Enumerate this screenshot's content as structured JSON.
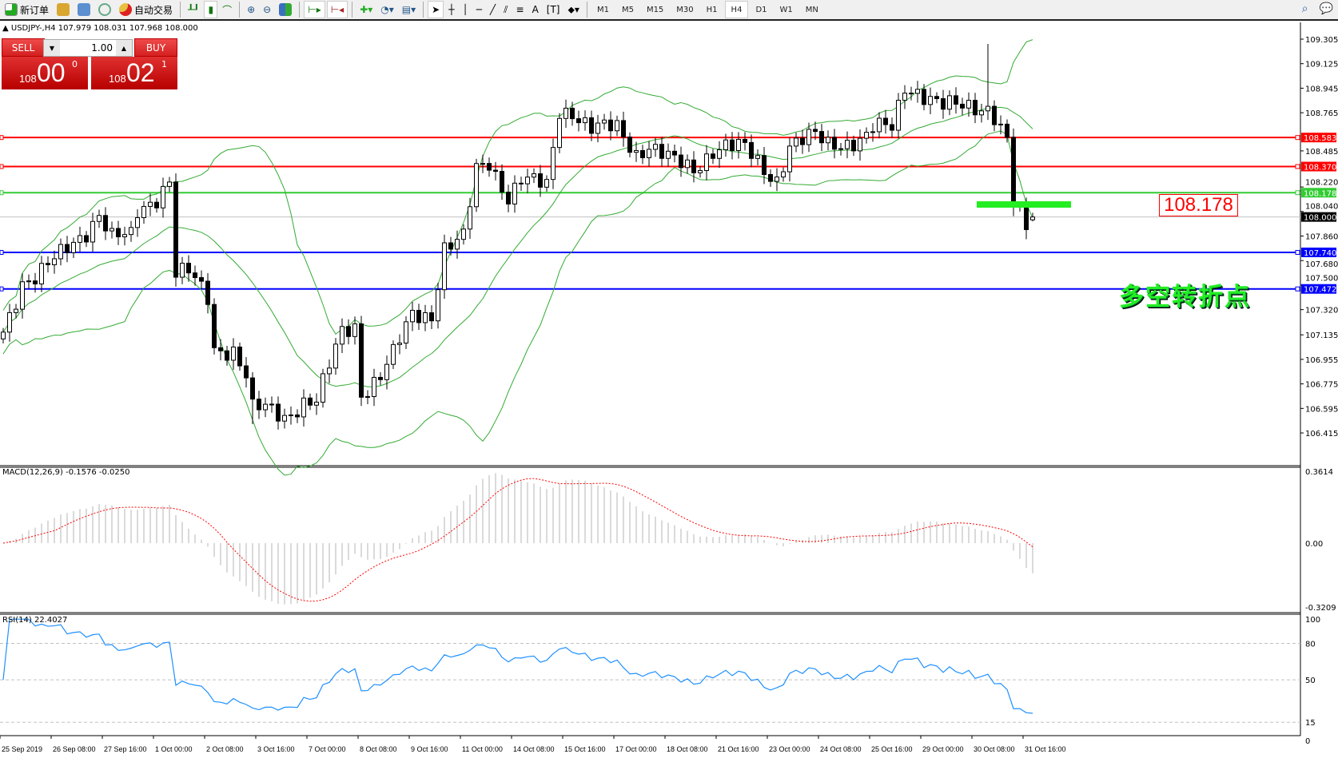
{
  "toolbar": {
    "new_order": "新订单",
    "auto_trading": "自动交易",
    "timeframes": [
      "M1",
      "M5",
      "M15",
      "M30",
      "H1",
      "H4",
      "D1",
      "W1",
      "MN"
    ],
    "active_timeframe": "H4",
    "icons": [
      "new-order-icon",
      "market-watch-icon",
      "navigator-icon",
      "signals-icon",
      "auto-trading-icon",
      "bar-chart-icon",
      "candlestick-icon",
      "line-chart-icon",
      "zoom-in-icon",
      "zoom-out-icon",
      "tile-windows-icon",
      "chart-shift-icon",
      "autoscroll-icon",
      "indicators-icon",
      "periods-icon",
      "templates-icon",
      "cursor-icon",
      "crosshair-icon",
      "vertical-line-icon",
      "horizontal-line-icon",
      "trendline-icon",
      "equidistant-channel-icon",
      "fibonacci-icon",
      "text-icon",
      "text-label-icon",
      "arrows-icon",
      "search-icon",
      "chat-icon"
    ]
  },
  "symbol_info": "USDJPY-,H4  107.979 108.031 107.968 108.000",
  "trade_panel": {
    "sell_label": "SELL",
    "buy_label": "BUY",
    "lot": "1.00",
    "sell_price": {
      "prefix": "108",
      "big": "00",
      "sup": "0"
    },
    "buy_price": {
      "prefix": "108",
      "big": "02",
      "sup": "1"
    }
  },
  "annotations": {
    "level_tag": "108.178",
    "note": "多空转折点"
  },
  "colors": {
    "bull_bear": "#000000",
    "bands": "#33aa33",
    "macd_hist": "#c0c0c0",
    "macd_signal": "#ff0000",
    "rsi": "#1e90ff",
    "sell_buy": "#d42020"
  },
  "chart_data": {
    "type": "candlestick",
    "symbol": "USDJPY-",
    "timeframe": "H4",
    "price_axis": [
      "109.305",
      "109.125",
      "108.945",
      "108.765",
      "108.485",
      "108.220",
      "108.040",
      "107.860",
      "107.680",
      "107.500",
      "107.320",
      "107.135",
      "106.955",
      "106.775",
      "106.595",
      "106.415"
    ],
    "ylim": [
      106.415,
      109.305
    ],
    "time_axis": [
      "25 Sep 2019",
      "26 Sep 08:00",
      "27 Sep 16:00",
      "1 Oct 00:00",
      "2 Oct 08:00",
      "3 Oct 16:00",
      "7 Oct 00:00",
      "8 Oct 08:00",
      "9 Oct 16:00",
      "11 Oct 00:00",
      "14 Oct 08:00",
      "15 Oct 16:00",
      "17 Oct 00:00",
      "18 Oct 08:00",
      "21 Oct 16:00",
      "23 Oct 00:00",
      "24 Oct 08:00",
      "25 Oct 16:00",
      "29 Oct 00:00",
      "30 Oct 08:00",
      "31 Oct 16:00"
    ],
    "price_path": [
      [
        0,
        107.155
      ],
      [
        3,
        107.53
      ],
      [
        5,
        107.56
      ],
      [
        9,
        107.72
      ],
      [
        13,
        107.9
      ],
      [
        15,
        108.03
      ],
      [
        17,
        107.85
      ],
      [
        20,
        107.85
      ],
      [
        21,
        108.03
      ],
      [
        24,
        108.15
      ],
      [
        26,
        108.28
      ],
      [
        27,
        107.59
      ],
      [
        29,
        107.59
      ],
      [
        32,
        107.4
      ],
      [
        33,
        107.03
      ],
      [
        36,
        107.03
      ],
      [
        38,
        106.84
      ],
      [
        39,
        106.59
      ],
      [
        41,
        106.59
      ],
      [
        44,
        106.53
      ],
      [
        47,
        106.65
      ],
      [
        49,
        106.65
      ],
      [
        51,
        106.9
      ],
      [
        53,
        107.15
      ],
      [
        55,
        107.2
      ],
      [
        56,
        106.71
      ],
      [
        59,
        106.84
      ],
      [
        61,
        106.99
      ],
      [
        64,
        107.28
      ],
      [
        67,
        107.28
      ],
      [
        69,
        107.78
      ],
      [
        72,
        107.84
      ],
      [
        74,
        108.34
      ],
      [
        76,
        108.4
      ],
      [
        79,
        108.15
      ],
      [
        81,
        108.28
      ],
      [
        85,
        108.22
      ],
      [
        87,
        108.78
      ],
      [
        89,
        108.78
      ],
      [
        92,
        108.65
      ],
      [
        96,
        108.65
      ],
      [
        99,
        108.47
      ],
      [
        101,
        108.53
      ],
      [
        105,
        108.4
      ],
      [
        108,
        108.34
      ],
      [
        111,
        108.5
      ],
      [
        113,
        108.53
      ],
      [
        116,
        108.5
      ],
      [
        119,
        108.34
      ],
      [
        121,
        108.28
      ],
      [
        123,
        108.53
      ],
      [
        127,
        108.59
      ],
      [
        129,
        108.53
      ],
      [
        133,
        108.56
      ],
      [
        135,
        108.59
      ],
      [
        136,
        108.65
      ],
      [
        139,
        108.65
      ],
      [
        141,
        108.96
      ],
      [
        143,
        108.93
      ],
      [
        145,
        108.87
      ],
      [
        147,
        108.81
      ],
      [
        151,
        108.81
      ],
      [
        154,
        108.81
      ],
      [
        155,
        108.75
      ],
      [
        157,
        108.56
      ],
      [
        158,
        108.09
      ],
      [
        160,
        107.9
      ],
      [
        161,
        108.0
      ]
    ],
    "last_ohlc": {
      "open": 107.979,
      "high": 108.031,
      "low": 107.968,
      "close": 108.0
    },
    "horizontal_lines": [
      {
        "price": "108.583",
        "color": "#ff0000"
      },
      {
        "price": "108.370",
        "color": "#ff0000"
      },
      {
        "price": "108.178",
        "color": "#33cc33"
      },
      {
        "price": "108.000",
        "color": "#000000"
      },
      {
        "price": "107.740",
        "color": "#0000ff"
      },
      {
        "price": "107.472",
        "color": "#0000ff"
      }
    ],
    "indicators": {
      "bollinger": {
        "period": 20,
        "deviation": 2
      },
      "macd": {
        "title": "MACD(12,26,9) -0.1576 -0.0250",
        "axis": [
          "0.3614",
          "0.00",
          "-0.3209"
        ],
        "ylim": [
          -0.3209,
          0.3614
        ]
      },
      "rsi": {
        "title": "RSI(14) 22.4027",
        "axis": [
          "100",
          "80",
          "50",
          "15",
          "0"
        ],
        "levels": [
          80,
          50,
          15
        ],
        "ylim": [
          0,
          100
        ]
      }
    }
  }
}
